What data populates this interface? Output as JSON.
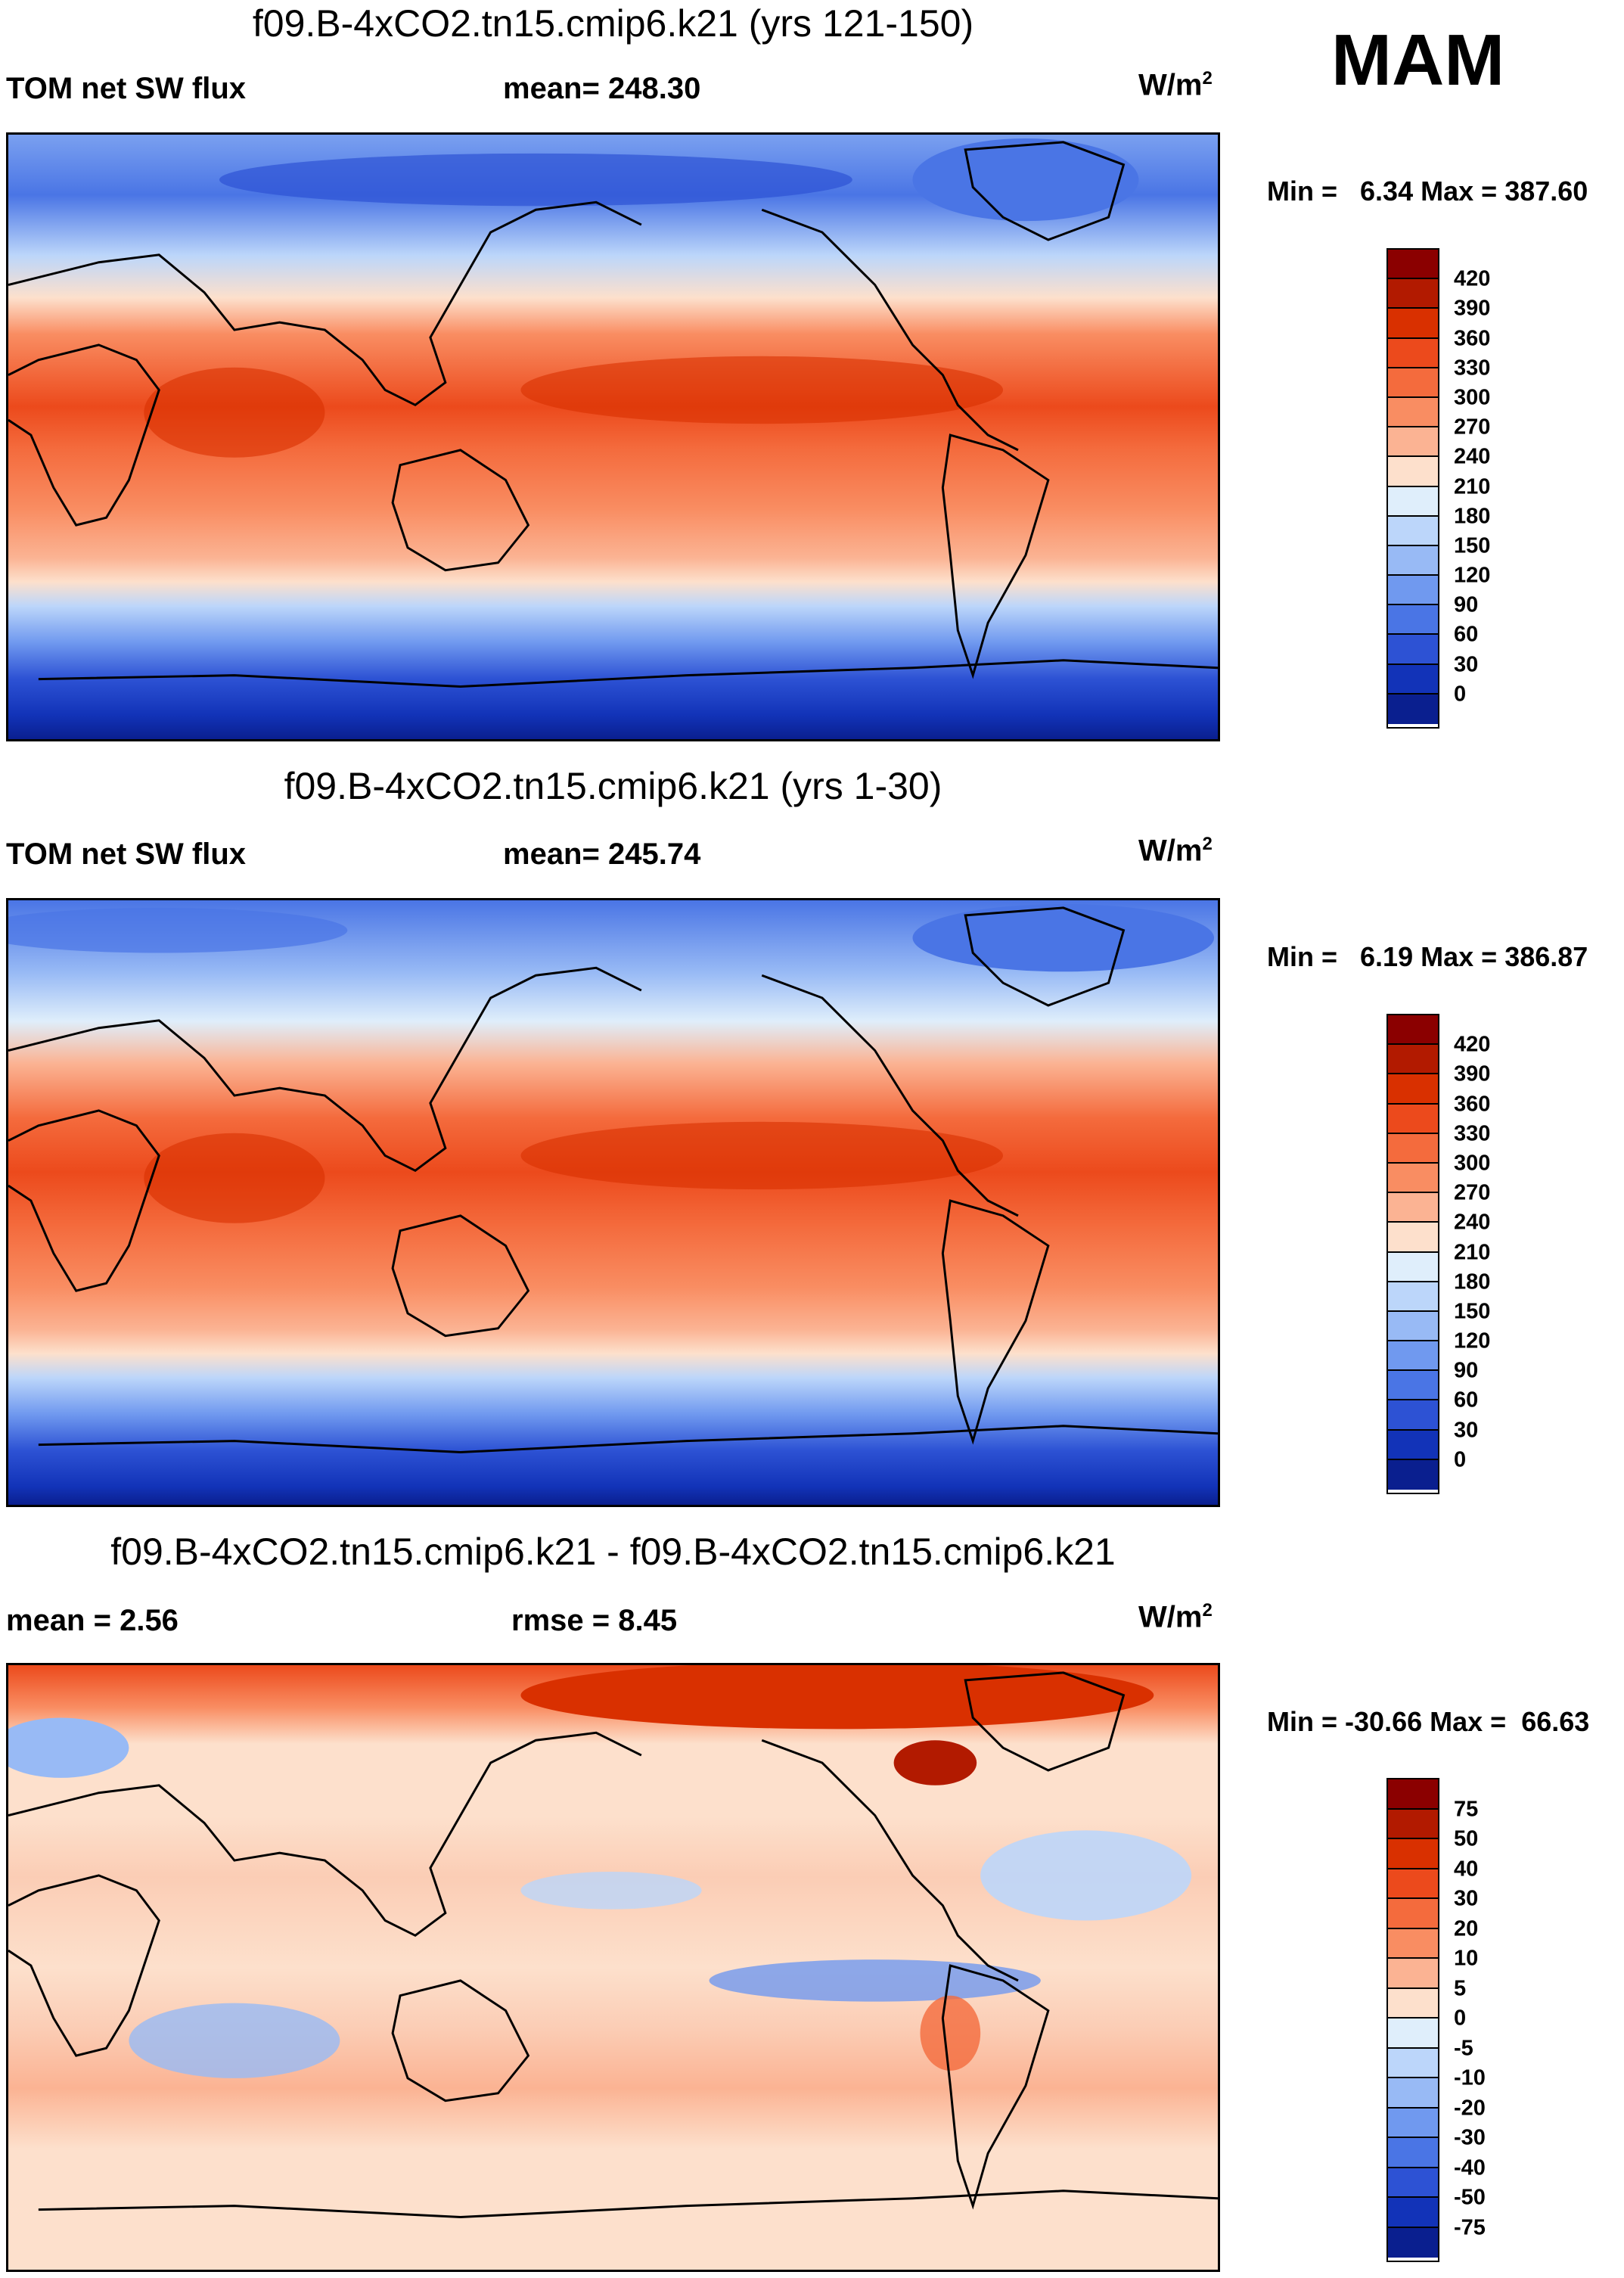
{
  "season": "MAM",
  "panels": [
    {
      "title": "f09.B-4xCO2.tn15.cmip6.k21 (yrs 121-150)",
      "left_label": "TOM net SW flux",
      "center_label": "mean= 248.30",
      "units_base": "W/m",
      "units_exp": "2",
      "min_label": "Min =",
      "min_value": "6.34",
      "max_label": "Max =",
      "max_value": "387.60",
      "scale": "abs",
      "colorbar": {
        "labels": [
          "420",
          "390",
          "360",
          "330",
          "300",
          "270",
          "240",
          "210",
          "180",
          "150",
          "120",
          "90",
          "60",
          "30",
          "0"
        ],
        "colors": [
          "#8b0000",
          "#b21a00",
          "#d93000",
          "#ec4a1c",
          "#f46b3d",
          "#f98d62",
          "#fbb393",
          "#fde0cc",
          "#dfeefb",
          "#bcd6fa",
          "#98baf5",
          "#7099ef",
          "#4a75e5",
          "#2d52d4",
          "#1233b8",
          "#0a1f8f"
        ]
      }
    },
    {
      "title": "f09.B-4xCO2.tn15.cmip6.k21 (yrs 1-30)",
      "left_label": "TOM net SW flux",
      "center_label": "mean= 245.74",
      "units_base": "W/m",
      "units_exp": "2",
      "min_label": "Min =",
      "min_value": "6.19",
      "max_label": "Max =",
      "max_value": "386.87",
      "scale": "abs",
      "colorbar": {
        "labels": [
          "420",
          "390",
          "360",
          "330",
          "300",
          "270",
          "240",
          "210",
          "180",
          "150",
          "120",
          "90",
          "60",
          "30",
          "0"
        ],
        "colors": [
          "#8b0000",
          "#b21a00",
          "#d93000",
          "#ec4a1c",
          "#f46b3d",
          "#f98d62",
          "#fbb393",
          "#fde0cc",
          "#dfeefb",
          "#bcd6fa",
          "#98baf5",
          "#7099ef",
          "#4a75e5",
          "#2d52d4",
          "#1233b8",
          "#0a1f8f"
        ]
      }
    },
    {
      "title": "f09.B-4xCO2.tn15.cmip6.k21 - f09.B-4xCO2.tn15.cmip6.k21",
      "left_label": "mean =   2.56",
      "center_label": "rmse =   8.45",
      "units_base": "W/m",
      "units_exp": "2",
      "min_label": "Min =",
      "min_value": "-30.66",
      "max_label": "Max =",
      "max_value": "66.63",
      "scale": "diff",
      "colorbar": {
        "labels": [
          "75",
          "50",
          "40",
          "30",
          "20",
          "10",
          "5",
          "0",
          "-5",
          "-10",
          "-20",
          "-30",
          "-40",
          "-50",
          "-75"
        ],
        "colors": [
          "#8b0000",
          "#b21a00",
          "#d93000",
          "#ec4a1c",
          "#f46b3d",
          "#f98d62",
          "#fbb393",
          "#fde0cc",
          "#dfeefb",
          "#bcd6fa",
          "#98baf5",
          "#7099ef",
          "#4a75e5",
          "#2d52d4",
          "#1233b8",
          "#0a1f8f"
        ]
      }
    }
  ]
}
